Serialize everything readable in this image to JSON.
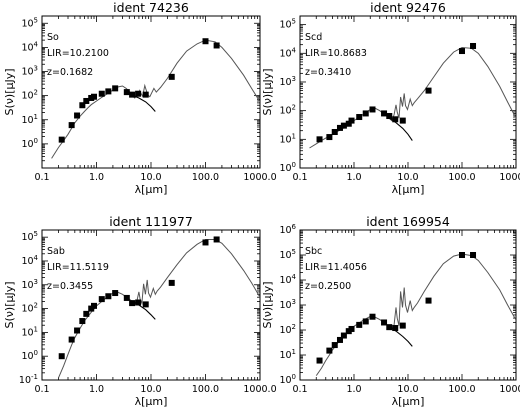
{
  "chart_data": [
    {
      "type": "line",
      "title": "ident 74236",
      "annotations": [
        "So",
        "LIR=10.2100",
        "z=0.1682"
      ],
      "xlabel": "λ[μm]",
      "ylabel": "S(ν)[μJy]",
      "xscale": "log",
      "yscale": "log",
      "xlim": [
        0.1,
        1000
      ],
      "ylim": [
        0.1,
        200000
      ],
      "xticks": [
        "0.1",
        "1.0",
        "10.0",
        "100.0",
        "1000.0"
      ],
      "yticks": [
        "10^0",
        "10^1",
        "10^2",
        "10^3",
        "10^4",
        "10^5"
      ],
      "series": [
        {
          "kind": "model",
          "x": [
            0.15,
            0.2,
            0.25,
            0.3,
            0.35,
            0.4,
            0.5,
            0.6,
            0.7,
            0.8,
            1.0,
            1.2,
            1.5,
            2.0,
            2.5,
            3.0,
            3.5,
            4.0,
            4.5,
            5.0,
            5.5,
            6.0,
            6.2,
            6.6,
            7.0,
            7.7,
            8.3,
            8.6,
            9.5,
            11.3,
            12.5,
            15.0,
            20.0,
            30.0,
            45.0,
            70.0,
            100.0,
            150.0,
            200.0,
            300.0,
            500.0,
            700.0,
            1000.0
          ],
          "y": [
            0.25,
            0.7,
            1.4,
            2.5,
            4.5,
            7.5,
            14,
            22,
            32,
            42,
            60,
            80,
            110,
            170,
            230,
            250,
            200,
            150,
            105,
            80,
            90,
            110,
            160,
            120,
            95,
            260,
            150,
            110,
            90,
            200,
            140,
            220,
            520,
            2200,
            7000,
            14000,
            20000,
            17000,
            10000,
            3500,
            700,
            200,
            55
          ]
        },
        {
          "kind": "stellar",
          "x": [
            4.5,
            6.0,
            8.0,
            10.0,
            12.0
          ],
          "y": [
            105,
            80,
            55,
            35,
            22
          ]
        },
        {
          "kind": "observed",
          "x": [
            0.23,
            0.35,
            0.44,
            0.55,
            0.65,
            0.8,
            0.9,
            1.25,
            1.65,
            2.2,
            3.6,
            4.5,
            5.8,
            8.0,
            24.0,
            100.0,
            160.0
          ],
          "y": [
            1.5,
            6,
            15,
            40,
            60,
            80,
            90,
            120,
            150,
            200,
            140,
            110,
            120,
            110,
            600,
            18000,
            12000
          ]
        }
      ]
    },
    {
      "type": "line",
      "title": "ident 92476",
      "annotations": [
        "Scd",
        "LIR=10.8683",
        "z=0.3410"
      ],
      "xlabel": "λ[μm]",
      "ylabel": "S(ν)[μJy]",
      "xscale": "log",
      "yscale": "log",
      "xlim": [
        0.1,
        1000
      ],
      "ylim": [
        1,
        200000
      ],
      "xticks": [
        "0.1",
        "1.0",
        "10.0",
        "100.0",
        "1000.0"
      ],
      "yticks": [
        "10^0",
        "10^1",
        "10^2",
        "10^3",
        "10^4",
        "10^5"
      ],
      "series": [
        {
          "kind": "model",
          "x": [
            0.15,
            0.2,
            0.25,
            0.3,
            0.4,
            0.5,
            0.6,
            0.8,
            1.0,
            1.5,
            2.0,
            2.5,
            3.0,
            4.0,
            5.0,
            5.5,
            6.0,
            6.3,
            6.8,
            7.3,
            7.9,
            8.5,
            9.0,
            9.8,
            11.0,
            12.0,
            13.0,
            15.0,
            20.0,
            30.0,
            45.0,
            70.0,
            100.0,
            150.0,
            200.0,
            300.0,
            500.0,
            700.0,
            1000.0
          ],
          "y": [
            5,
            7,
            9,
            11,
            15,
            19,
            23,
            32,
            45,
            75,
            110,
            120,
            100,
            65,
            45,
            70,
            160,
            90,
            55,
            300,
            140,
            400,
            150,
            110,
            250,
            150,
            190,
            260,
            500,
            1500,
            4500,
            11000,
            16000,
            15000,
            10000,
            3500,
            700,
            200,
            55
          ]
        },
        {
          "kind": "stellar",
          "x": [
            4.5,
            6.0,
            8.0,
            10.0,
            12.0
          ],
          "y": [
            55,
            38,
            24,
            15,
            9
          ]
        },
        {
          "kind": "observed",
          "x": [
            0.23,
            0.35,
            0.44,
            0.55,
            0.65,
            0.8,
            0.9,
            1.25,
            1.65,
            2.2,
            3.6,
            4.5,
            5.8,
            8.0,
            24.0,
            100.0,
            160.0
          ],
          "y": [
            10,
            12,
            18,
            25,
            30,
            35,
            45,
            60,
            80,
            110,
            80,
            65,
            50,
            45,
            500,
            12000,
            18000
          ]
        }
      ]
    },
    {
      "type": "line",
      "title": "ident 111977",
      "annotations": [
        "Sab",
        "LIR=11.5119",
        "z=0.3455"
      ],
      "xlabel": "λ[μm]",
      "ylabel": "S(ν)[μJy]",
      "xscale": "log",
      "yscale": "log",
      "xlim": [
        0.1,
        1000
      ],
      "ylim": [
        0.1,
        200000
      ],
      "xticks": [
        "0.1",
        "1.0",
        "10.0",
        "100.0",
        "1000.0"
      ],
      "yticks": [
        "10^-1",
        "10^0",
        "10^1",
        "10^2",
        "10^3",
        "10^4",
        "10^5"
      ],
      "series": [
        {
          "kind": "model",
          "x": [
            0.2,
            0.25,
            0.3,
            0.35,
            0.4,
            0.5,
            0.6,
            0.8,
            1.0,
            1.5,
            2.0,
            2.5,
            3.0,
            4.0,
            5.0,
            5.5,
            6.0,
            6.3,
            6.8,
            7.3,
            7.9,
            8.5,
            9.0,
            9.8,
            11.0,
            12.0,
            13.0,
            15.0,
            20.0,
            30.0,
            45.0,
            70.0,
            100.0,
            150.0,
            200.0,
            300.0,
            500.0,
            700.0,
            1000.0
          ],
          "y": [
            0.12,
            0.4,
            1.2,
            3,
            6,
            15,
            30,
            70,
            130,
            280,
            450,
            480,
            400,
            250,
            170,
            200,
            500,
            250,
            170,
            1100,
            400,
            1600,
            450,
            300,
            700,
            400,
            550,
            800,
            2000,
            7000,
            22000,
            50000,
            80000,
            80000,
            55000,
            20000,
            4000,
            1200,
            300
          ]
        },
        {
          "kind": "stellar",
          "x": [
            4.5,
            6.0,
            8.0,
            10.0,
            12.0
          ],
          "y": [
            200,
            140,
            90,
            55,
            35
          ]
        },
        {
          "kind": "observed",
          "x": [
            0.23,
            0.35,
            0.44,
            0.55,
            0.65,
            0.8,
            0.9,
            1.25,
            1.65,
            2.2,
            3.6,
            4.5,
            5.8,
            8.0,
            24.0,
            100.0,
            160.0
          ],
          "y": [
            1,
            5,
            12,
            30,
            60,
            100,
            130,
            250,
            330,
            450,
            280,
            170,
            180,
            150,
            1200,
            60000,
            80000
          ]
        }
      ]
    },
    {
      "type": "line",
      "title": "ident 169954",
      "annotations": [
        "Sbc",
        "LIR=11.4056",
        "z=0.2500"
      ],
      "xlabel": "λ[μm]",
      "ylabel": "S(ν)[μJy]",
      "xscale": "log",
      "yscale": "log",
      "xlim": [
        0.1,
        1000
      ],
      "ylim": [
        1,
        1000000
      ],
      "xticks": [
        "0.1",
        "1.0",
        "10.0",
        "100.0",
        "1000.0"
      ],
      "yticks": [
        "10^0",
        "10^1",
        "10^2",
        "10^3",
        "10^4",
        "10^5",
        "10^6"
      ],
      "series": [
        {
          "kind": "model",
          "x": [
            0.2,
            0.25,
            0.3,
            0.35,
            0.4,
            0.5,
            0.6,
            0.8,
            1.0,
            1.5,
            2.0,
            2.5,
            3.0,
            4.0,
            5.0,
            5.5,
            6.0,
            6.3,
            6.8,
            7.3,
            7.9,
            8.5,
            9.0,
            9.8,
            11.0,
            12.0,
            13.0,
            15.0,
            20.0,
            30.0,
            45.0,
            70.0,
            100.0,
            150.0,
            200.0,
            300.0,
            500.0,
            700.0,
            1000.0
          ],
          "y": [
            1.5,
            3,
            6,
            10,
            16,
            30,
            50,
            90,
            140,
            250,
            350,
            320,
            260,
            170,
            110,
            150,
            800,
            300,
            150,
            3500,
            800,
            5000,
            1000,
            500,
            1500,
            600,
            800,
            1200,
            3500,
            14000,
            45000,
            90000,
            110000,
            95000,
            60000,
            20000,
            4000,
            1000,
            250
          ]
        },
        {
          "kind": "stellar",
          "x": [
            4.5,
            6.0,
            8.0,
            10.0,
            12.0
          ],
          "y": [
            130,
            90,
            55,
            35,
            22
          ]
        },
        {
          "kind": "observed",
          "x": [
            0.23,
            0.35,
            0.44,
            0.55,
            0.65,
            0.8,
            0.9,
            1.25,
            1.65,
            2.2,
            3.6,
            4.5,
            5.8,
            8.0,
            24.0,
            100.0,
            160.0
          ],
          "y": [
            6,
            15,
            25,
            40,
            60,
            90,
            110,
            160,
            220,
            340,
            200,
            130,
            120,
            150,
            1500,
            100000,
            100000
          ]
        }
      ]
    }
  ]
}
